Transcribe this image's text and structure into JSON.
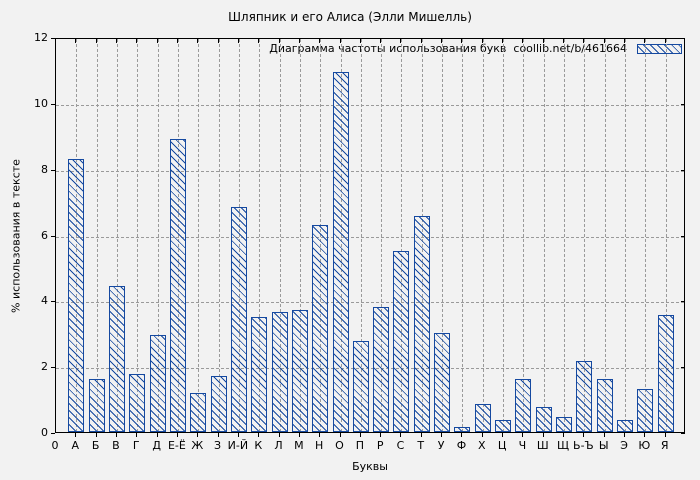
{
  "chart_data": {
    "type": "bar",
    "title": "Шляпник и его Алиса (Элли Мишелль)",
    "xlabel": "Буквы",
    "ylabel": "% использования в тексте",
    "legend_label": "Диаграмма частоты использования букв  coollib.net/b/461664",
    "legend_position": "top-right-inside",
    "x_origin_label": "0",
    "grid": true,
    "ylim": [
      0,
      12
    ],
    "yticks": [
      0,
      2,
      4,
      6,
      8,
      10,
      12
    ],
    "bar_color": "#1549a0",
    "bar_fill": "diagonal-hatch",
    "categories": [
      "А",
      "Б",
      "В",
      "Г",
      "Д",
      "Е-Ё",
      "Ж",
      "З",
      "И-Й",
      "К",
      "Л",
      "М",
      "Н",
      "О",
      "П",
      "Р",
      "С",
      "Т",
      "У",
      "Ф",
      "Х",
      "Ц",
      "Ч",
      "Ш",
      "Щ",
      "Ь-Ъ",
      "Ы",
      "Э",
      "Ю",
      "Я"
    ],
    "values": [
      8.3,
      1.6,
      4.45,
      1.75,
      2.95,
      8.9,
      1.2,
      1.7,
      6.85,
      3.5,
      3.65,
      3.7,
      6.3,
      10.95,
      2.75,
      3.8,
      5.5,
      6.55,
      3.0,
      0.15,
      0.85,
      0.35,
      1.6,
      0.75,
      0.45,
      2.15,
      1.6,
      0.35,
      1.3,
      3.55
    ]
  }
}
